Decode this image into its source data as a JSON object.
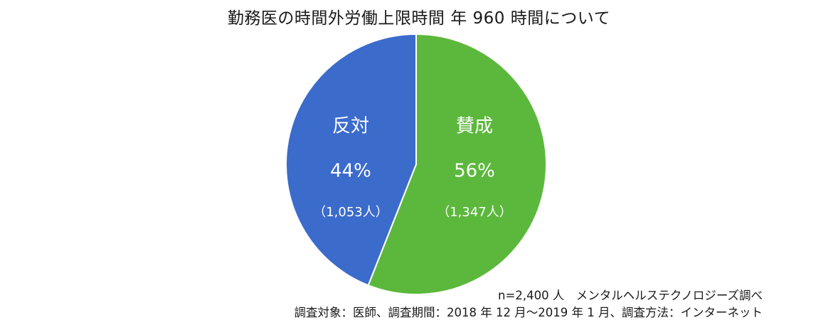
{
  "chart_data": {
    "type": "pie",
    "title": "勤務医の時間外労働上限時間  年 960 時間について",
    "slices": [
      {
        "name": "賛成",
        "value": 56,
        "percent_label": "56%",
        "count_label": "（1,347人）",
        "color": "#5cb83c"
      },
      {
        "name": "反対",
        "value": 44,
        "percent_label": "44%",
        "count_label": "（1,053人）",
        "color": "#3b6bcb"
      }
    ]
  },
  "notes": {
    "sample": "n=2,400 人　メンタルヘルステクノロジーズ調べ",
    "survey": "調査対象：医師、調査期間：2018 年 12 月～2019 年 1 月、調査方法：インターネット"
  }
}
